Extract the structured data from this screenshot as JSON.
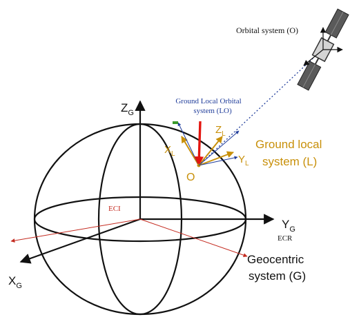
{
  "labels": {
    "orbital_system": "Orbital system (O)",
    "ground_local_orbital_line1": "Ground Local Orbital",
    "ground_local_orbital_line2": "system (LO)",
    "ground_local_line1": "Ground local",
    "ground_local_line2": "system (L)",
    "zg_main": "Z",
    "zg_sub": "G",
    "yg_main": "Y",
    "yg_sub": "G",
    "xg_main": "X",
    "xg_sub": "G",
    "xl_main": "X",
    "xl_sub": "L",
    "yl_main": "Y",
    "yl_sub": "L",
    "zl_main": "Z",
    "zl_sub": "L",
    "origin_o": "O",
    "eci": "ECI",
    "ecr": "ECR",
    "geocentric_line1": "Geocentric",
    "geocentric_line2": "system (G)"
  },
  "colors": {
    "axis": "#111111",
    "ground_local": "#c8900a",
    "ground_local_orbital": "#1f3c9a",
    "eci_red": "#c42a1f",
    "nadir_red": "#e3150f",
    "satellite_panel": "#5a5a5a"
  },
  "icons": {
    "satellite": "satellite-icon"
  }
}
